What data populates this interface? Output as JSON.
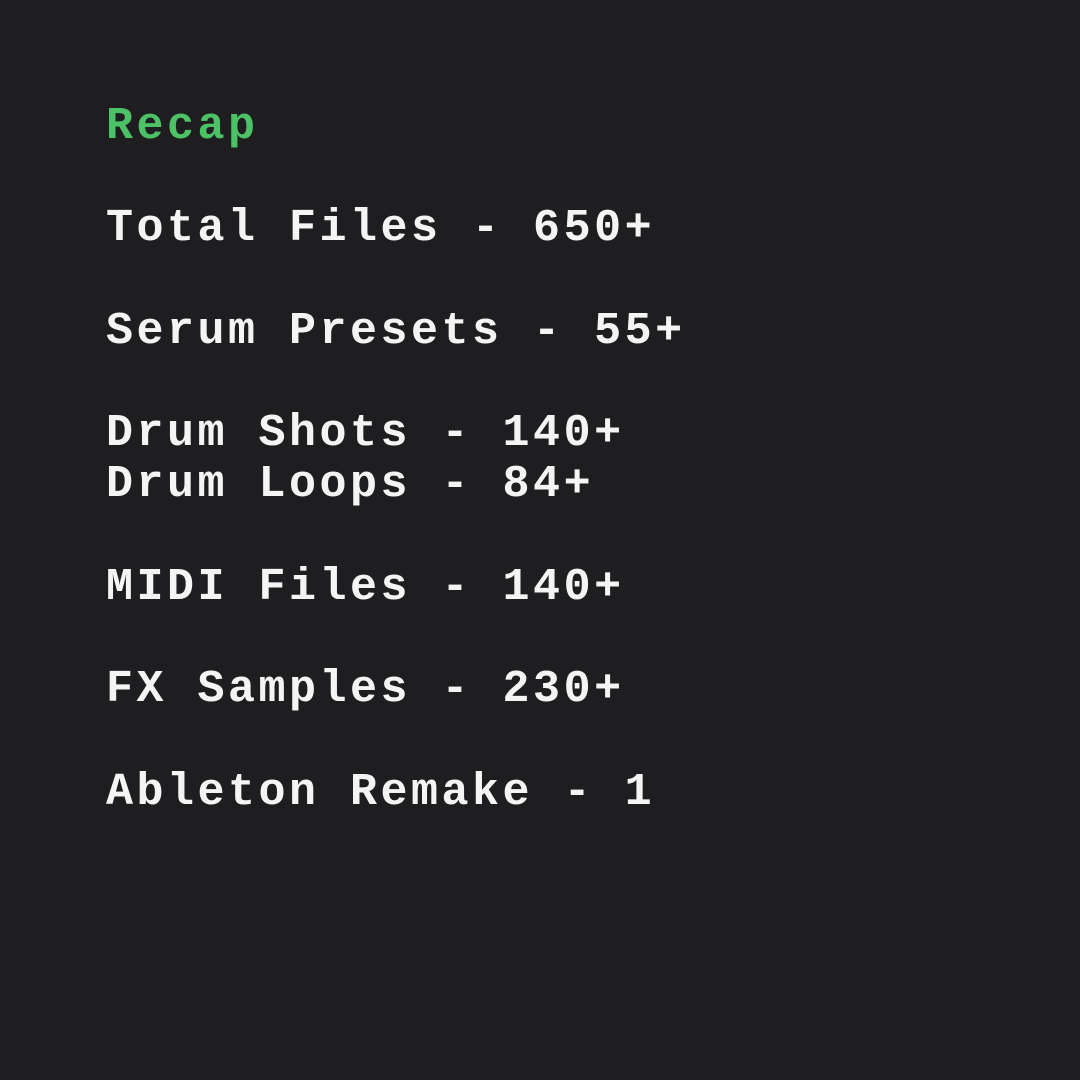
{
  "title": "Recap",
  "title_color": "#4cc165",
  "items": [
    "Total Files - 650+",
    "Serum Presets - 55+",
    "Drum Shots - 140+",
    "Drum Loops - 84+",
    "MIDI Files - 140+",
    "FX Samples - 230+",
    "Ableton Remake - 1"
  ]
}
